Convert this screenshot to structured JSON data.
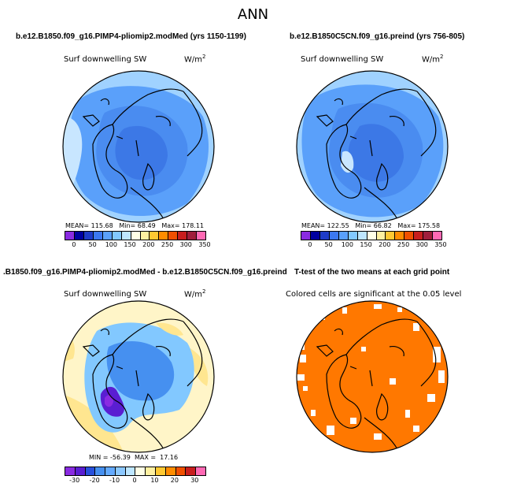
{
  "figure_title": "ANN",
  "panels": {
    "top_left": {
      "title": "b.e12.B1850.f09_g16.PIMP4-pliomip2.modMed (yrs 1150-1199)",
      "variable": "Surf downwelling SW",
      "units": "W/m",
      "units_exp": "2",
      "stats": {
        "mean_label": "MEAN=",
        "mean": "115.68",
        "min_label": "Min=",
        "min": "68.49",
        "max_label": "Max=",
        "max": "178.11"
      }
    },
    "top_right": {
      "title": "b.e12.B1850C5CN.f09_g16.preind (yrs 756-805)",
      "variable": "Surf downwelling SW",
      "units": "W/m",
      "units_exp": "2",
      "stats": {
        "mean_label": "MEAN=",
        "mean": "122.55",
        "min_label": "Min=",
        "min": "66.82",
        "max_label": "Max=",
        "max": "175.58"
      }
    },
    "bottom_left": {
      "title": ".B1850.f09_g16.PIMP4-pliomip2.modMed - b.e12.B1850C5CN.f09_g16.preind",
      "variable": "Surf downwelling SW",
      "units": "W/m",
      "units_exp": "2",
      "stats": {
        "min_label": "MIN =",
        "min": "-56.39",
        "max_label": "MAX =",
        "max": "17.16"
      }
    },
    "bottom_right": {
      "title": "T-test of the two means at each grid point",
      "note": "Colored cells are significant at the 0.05 level"
    }
  },
  "colorbars": {
    "abs": {
      "colors": [
        "#8a2be2",
        "#0000a0",
        "#1e3cc8",
        "#3c78f0",
        "#5aa0fa",
        "#82c8ff",
        "#bee6ff",
        "#ffffe6",
        "#fff0a0",
        "#ffc832",
        "#ff8c00",
        "#f05000",
        "#c81e1e",
        "#a01e3c",
        "#ff69b4"
      ],
      "labels": [
        "0",
        "50",
        "100",
        "150",
        "200",
        "250",
        "300",
        "350"
      ]
    },
    "diff": {
      "colors": [
        "#8a2be2",
        "#5a1ed2",
        "#2850dc",
        "#4690f0",
        "#64aaff",
        "#8cc8ff",
        "#bee6ff",
        "#ffffe6",
        "#fff0a0",
        "#ffc832",
        "#ff8c00",
        "#f05000",
        "#c81e1e",
        "#ff69b4"
      ],
      "labels": [
        "-30",
        "-20",
        "-10",
        "0",
        "10",
        "20",
        "30"
      ]
    }
  },
  "map_colors": {
    "abs_outer": "#a0d2ff",
    "abs_mid": "#5aa0fa",
    "abs_inner": "#4a8cf0",
    "abs_core": "#3c78e6",
    "ice": "#c8e6ff",
    "diff_bg": "#fff5c8",
    "diff_yellow": "#ffe690",
    "diff_blue": "#82c8ff",
    "diff_darkblue": "#4690f0",
    "diff_purple": "#8a2be2",
    "ttest": "#ff7800",
    "land_line": "#000000"
  }
}
